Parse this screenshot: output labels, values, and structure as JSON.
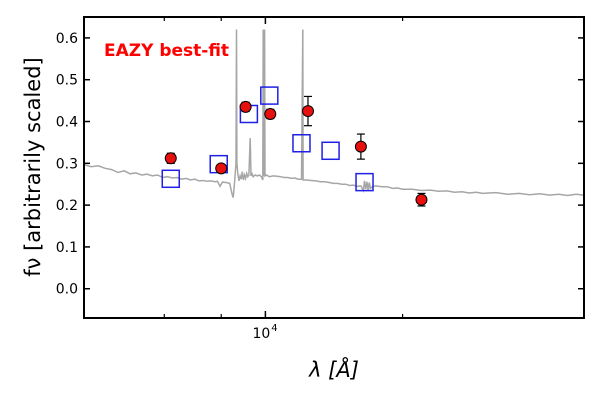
{
  "chart_data": {
    "type": "scatter",
    "title": "",
    "annotation": "EAZY best-fit",
    "xlabel": "λ [Å]",
    "ylabel": "fν [arbitrarily scaled]",
    "xscale": "log",
    "xlim": [
      4000,
      50000
    ],
    "ylim": [
      -0.07,
      0.65
    ],
    "grid": false,
    "yticks": [
      0.0,
      0.1,
      0.2,
      0.3,
      0.4,
      0.5,
      0.6
    ],
    "ytick_labels": [
      "0.0",
      "0.1",
      "0.2",
      "0.3",
      "0.4",
      "0.5",
      "0.6"
    ],
    "xtick_major": [
      10000
    ],
    "xtick_major_label_base": "10",
    "xtick_major_label_exp": "4",
    "xtick_minor": [
      6000,
      8000,
      20000
    ],
    "colors": {
      "observed": "#e8100f",
      "model_box": "#1f1fe6",
      "spectrum": "#a6a6a6",
      "annotation": "#ff0000"
    },
    "series": [
      {
        "kind": "observed",
        "points": [
          {
            "x": 6200,
            "y": 0.312,
            "err": 0.012
          },
          {
            "x": 8000,
            "y": 0.288,
            "err": 0.008
          },
          {
            "x": 9050,
            "y": 0.435,
            "err": 0.011
          },
          {
            "x": 10250,
            "y": 0.418,
            "err": 0.011
          },
          {
            "x": 12400,
            "y": 0.425,
            "err": 0.035
          },
          {
            "x": 16200,
            "y": 0.34,
            "err": 0.03
          },
          {
            "x": 22000,
            "y": 0.213,
            "err": 0.015
          }
        ]
      },
      {
        "kind": "model",
        "points": [
          {
            "x": 6200,
            "y": 0.263
          },
          {
            "x": 7900,
            "y": 0.298
          },
          {
            "x": 9200,
            "y": 0.418
          },
          {
            "x": 10200,
            "y": 0.462
          },
          {
            "x": 12000,
            "y": 0.348
          },
          {
            "x": 13900,
            "y": 0.33
          },
          {
            "x": 16500,
            "y": 0.255
          }
        ]
      },
      {
        "kind": "spectrum",
        "points": [
          [
            4000,
            0.297
          ],
          [
            4150,
            0.292
          ],
          [
            4300,
            0.294
          ],
          [
            4450,
            0.288
          ],
          [
            4600,
            0.285
          ],
          [
            4750,
            0.278
          ],
          [
            4900,
            0.282
          ],
          [
            5050,
            0.275
          ],
          [
            5200,
            0.277
          ],
          [
            5350,
            0.272
          ],
          [
            5500,
            0.274
          ],
          [
            5650,
            0.27
          ],
          [
            5800,
            0.272
          ],
          [
            5950,
            0.266
          ],
          [
            6100,
            0.268
          ],
          [
            6250,
            0.265
          ],
          [
            6400,
            0.266
          ],
          [
            6550,
            0.262
          ],
          [
            6700,
            0.264
          ],
          [
            6850,
            0.26
          ],
          [
            7000,
            0.262
          ],
          [
            7150,
            0.258
          ],
          [
            7300,
            0.259
          ],
          [
            7450,
            0.257
          ],
          [
            7600,
            0.258
          ],
          [
            7750,
            0.256
          ],
          [
            7850,
            0.257
          ],
          [
            7950,
            0.245
          ],
          [
            8050,
            0.255
          ],
          [
            8200,
            0.254
          ],
          [
            8350,
            0.252
          ],
          [
            8450,
            0.226
          ],
          [
            8500,
            0.218
          ],
          [
            8550,
            0.25
          ],
          [
            8620,
            0.3
          ],
          [
            8640,
            0.62
          ],
          [
            8660,
            0.3
          ],
          [
            8700,
            0.275
          ],
          [
            8750,
            0.258
          ],
          [
            8800,
            0.27
          ],
          [
            8850,
            0.262
          ],
          [
            8900,
            0.28
          ],
          [
            8950,
            0.26
          ],
          [
            9000,
            0.272
          ],
          [
            9050,
            0.264
          ],
          [
            9100,
            0.276
          ],
          [
            9150,
            0.268
          ],
          [
            9200,
            0.272
          ],
          [
            9260,
            0.36
          ],
          [
            9300,
            0.27
          ],
          [
            9350,
            0.275
          ],
          [
            9400,
            0.268
          ],
          [
            9500,
            0.272
          ],
          [
            9600,
            0.27
          ],
          [
            9700,
            0.272
          ],
          [
            9800,
            0.268
          ],
          [
            9870,
            0.26
          ],
          [
            9890,
            0.62
          ],
          [
            9910,
            0.27
          ],
          [
            9960,
            0.62
          ],
          [
            9980,
            0.27
          ],
          [
            10050,
            0.272
          ],
          [
            10200,
            0.268
          ],
          [
            10400,
            0.27
          ],
          [
            10600,
            0.269
          ],
          [
            10800,
            0.268
          ],
          [
            11000,
            0.266
          ],
          [
            11200,
            0.266
          ],
          [
            11400,
            0.264
          ],
          [
            11600,
            0.265
          ],
          [
            11800,
            0.262
          ],
          [
            12000,
            0.262
          ],
          [
            12080,
            0.62
          ],
          [
            12100,
            0.26
          ],
          [
            12300,
            0.26
          ],
          [
            12600,
            0.259
          ],
          [
            12900,
            0.258
          ],
          [
            13200,
            0.256
          ],
          [
            13500,
            0.256
          ],
          [
            13800,
            0.254
          ],
          [
            14100,
            0.252
          ],
          [
            14400,
            0.252
          ],
          [
            14700,
            0.25
          ],
          [
            15000,
            0.25
          ],
          [
            15300,
            0.247
          ],
          [
            15600,
            0.248
          ],
          [
            15900,
            0.245
          ],
          [
            16200,
            0.246
          ],
          [
            16400,
            0.235
          ],
          [
            16500,
            0.258
          ],
          [
            16600,
            0.238
          ],
          [
            16700,
            0.256
          ],
          [
            16800,
            0.236
          ],
          [
            16900,
            0.254
          ],
          [
            17000,
            0.24
          ],
          [
            17200,
            0.245
          ],
          [
            17500,
            0.246
          ],
          [
            18000,
            0.244
          ],
          [
            18500,
            0.244
          ],
          [
            19000,
            0.24
          ],
          [
            19500,
            0.241
          ],
          [
            20000,
            0.238
          ],
          [
            21000,
            0.238
          ],
          [
            22000,
            0.235
          ],
          [
            23000,
            0.236
          ],
          [
            24000,
            0.233
          ],
          [
            25000,
            0.234
          ],
          [
            26000,
            0.231
          ],
          [
            27000,
            0.232
          ],
          [
            28000,
            0.229
          ],
          [
            29000,
            0.231
          ],
          [
            30000,
            0.228
          ],
          [
            32000,
            0.23
          ],
          [
            34000,
            0.226
          ],
          [
            36000,
            0.228
          ],
          [
            38000,
            0.225
          ],
          [
            40000,
            0.227
          ],
          [
            42000,
            0.224
          ],
          [
            44000,
            0.226
          ],
          [
            46000,
            0.223
          ],
          [
            48000,
            0.226
          ],
          [
            50000,
            0.224
          ]
        ]
      }
    ]
  }
}
